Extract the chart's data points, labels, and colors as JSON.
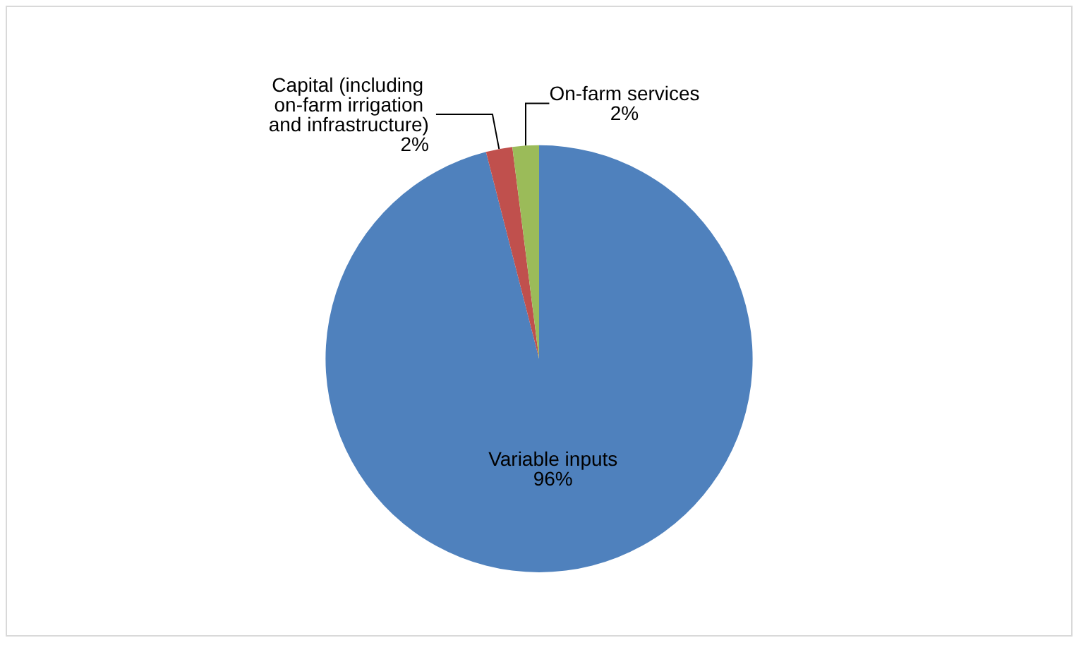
{
  "chart_data": {
    "type": "pie",
    "categories": [
      "Variable inputs",
      "Capital (including on-farm irrigation and infrastructure)",
      "On-farm services"
    ],
    "values": [
      96,
      2,
      2
    ],
    "colors": [
      "#4f81bd",
      "#c0504d",
      "#9bbb59"
    ],
    "value_labels": [
      "96%",
      "2%",
      "2%"
    ],
    "legend": false
  }
}
